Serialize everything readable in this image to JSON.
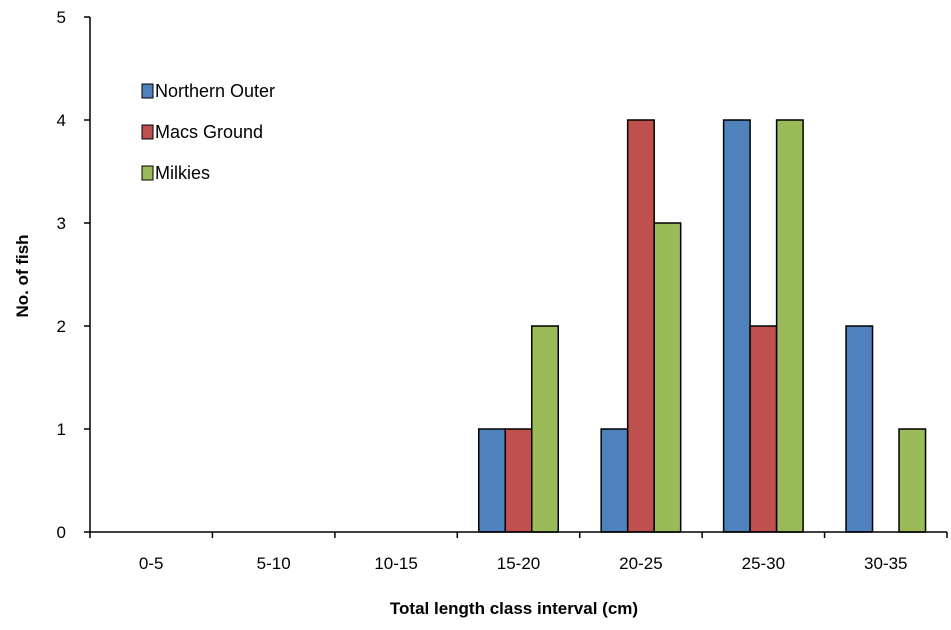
{
  "chart_data": {
    "type": "bar",
    "categories": [
      "0-5",
      "5-10",
      "10-15",
      "15-20",
      "20-25",
      "25-30",
      "30-35"
    ],
    "series": [
      {
        "name": "Northern Outer",
        "color": "#4f81bd",
        "values": [
          0,
          0,
          0,
          1,
          1,
          4,
          2
        ]
      },
      {
        "name": "Macs Ground",
        "color": "#c0504d",
        "values": [
          0,
          0,
          0,
          1,
          4,
          2,
          0
        ]
      },
      {
        "name": "Milkies",
        "color": "#9bbb59",
        "values": [
          0,
          0,
          0,
          2,
          3,
          4,
          1
        ]
      }
    ],
    "title": "",
    "xlabel": "Total length class interval (cm)",
    "ylabel": "No. of fish",
    "ylim": [
      0,
      5
    ],
    "yticks": [
      0,
      1,
      2,
      3,
      4,
      5
    ],
    "grid": false,
    "legend_position": "top-left"
  }
}
